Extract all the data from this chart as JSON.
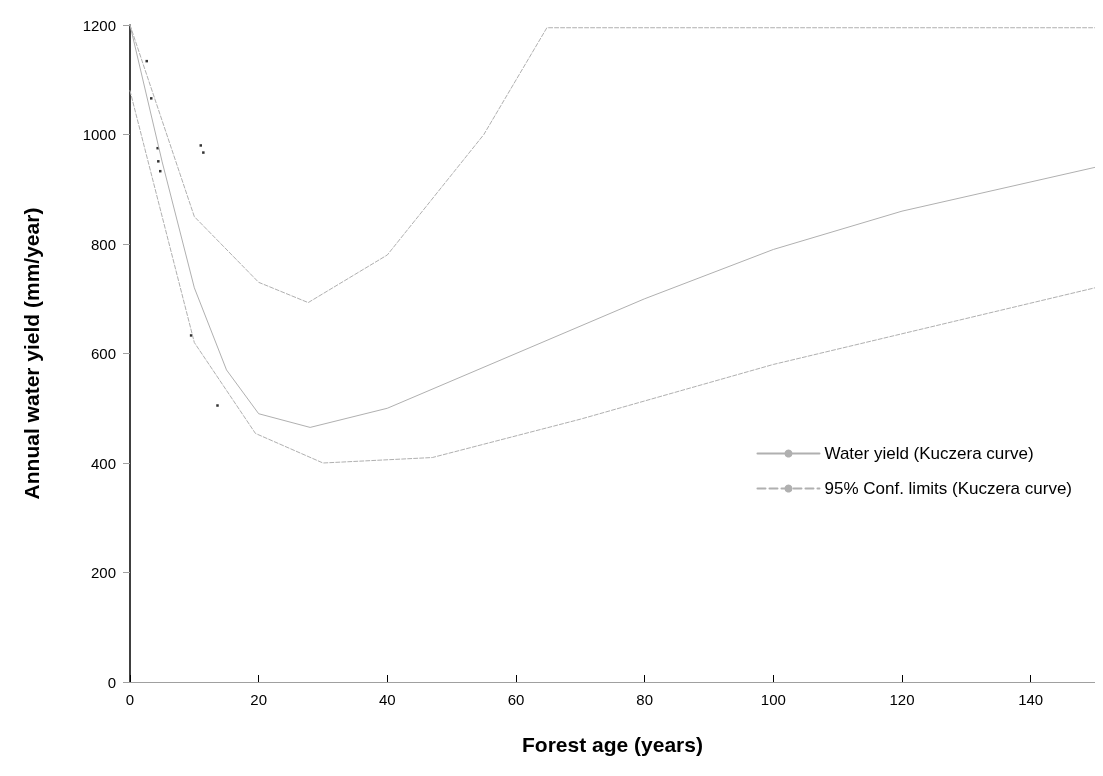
{
  "chart_data": {
    "type": "line",
    "xlabel": "Forest age (years)",
    "ylabel": "Annual water yield (mm/year)",
    "xlim": [
      0,
      150
    ],
    "xticks": [
      0,
      20,
      40,
      60,
      80,
      100,
      120,
      140
    ],
    "ylim": [
      0,
      1200
    ],
    "yticks": [
      0,
      200,
      400,
      600,
      800,
      1000,
      1200
    ],
    "grid": false,
    "legend": "right",
    "series": [
      {
        "type": "scatter",
        "marker": "square",
        "color": "#000000",
        "x": [
          2.6,
          3.3,
          4.3,
          4.4,
          4.7,
          9.5,
          11.0,
          11.4,
          13.6
        ],
        "values": [
          1134,
          1066,
          975,
          951,
          933,
          633,
          980,
          967,
          505
        ]
      },
      {
        "name": "Water yield (Kuczera curve)",
        "marker": "none",
        "line_style": "solid",
        "color": "#b0b0b0",
        "x": [
          0,
          5,
          10,
          15,
          20,
          28,
          40,
          60,
          80,
          100,
          120,
          150
        ],
        "values": [
          1200,
          950,
          720,
          570,
          490,
          465,
          500,
          600,
          700,
          790,
          860,
          940
        ]
      },
      {
        "name": "95% Conf. limits (Kuczera curve)",
        "marker": "none",
        "line_style": "dashed",
        "color": "#b0b0b0",
        "x": [
          0,
          10,
          20,
          27.7,
          40,
          55,
          64.8,
          150
        ],
        "values": [
          1200,
          850,
          730,
          693,
          780,
          1000,
          1195,
          1195
        ]
      },
      {
        "marker": "none",
        "line_style": "dashed",
        "color": "#b0b0b0",
        "x": [
          0,
          10,
          19.5,
          30,
          47,
          70,
          100,
          150
        ],
        "values": [
          1080,
          620,
          454,
          400,
          410,
          480,
          580,
          720
        ]
      }
    ]
  }
}
